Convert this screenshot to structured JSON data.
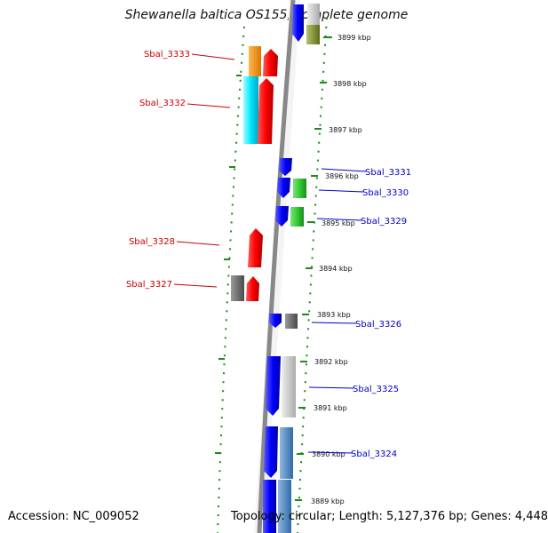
{
  "title": "Shewanella baltica OS155, complete genome",
  "accession": "Accession: NC_009052",
  "topology": "Topology: circular; Length: 5,127,376 bp; Genes: 4,448",
  "colors": {
    "reverse_label": "#cc0000",
    "forward_label": "#0000cc",
    "tick": "#1a8a1a",
    "backbone": "#888888"
  },
  "kbp_ticks": [
    {
      "label": "3899 kbp"
    },
    {
      "label": "3898 kbp"
    },
    {
      "label": "3897 kbp"
    },
    {
      "label": "3896 kbp"
    },
    {
      "label": "3895 kbp"
    },
    {
      "label": "3894 kbp"
    },
    {
      "label": "3893 kbp"
    },
    {
      "label": "3892 kbp"
    },
    {
      "label": "3891 kbp"
    },
    {
      "label": "3890 kbp"
    },
    {
      "label": "3889 kbp"
    }
  ],
  "gene_labels_left": [
    "Sbal_3333",
    "Sbal_3332",
    "Sbal_3328",
    "Sbal_3327"
  ],
  "gene_labels_right": [
    "Sbal_3331",
    "Sbal_3330",
    "Sbal_3329",
    "Sbal_3326",
    "Sbal_3325",
    "Sbal_3324"
  ]
}
